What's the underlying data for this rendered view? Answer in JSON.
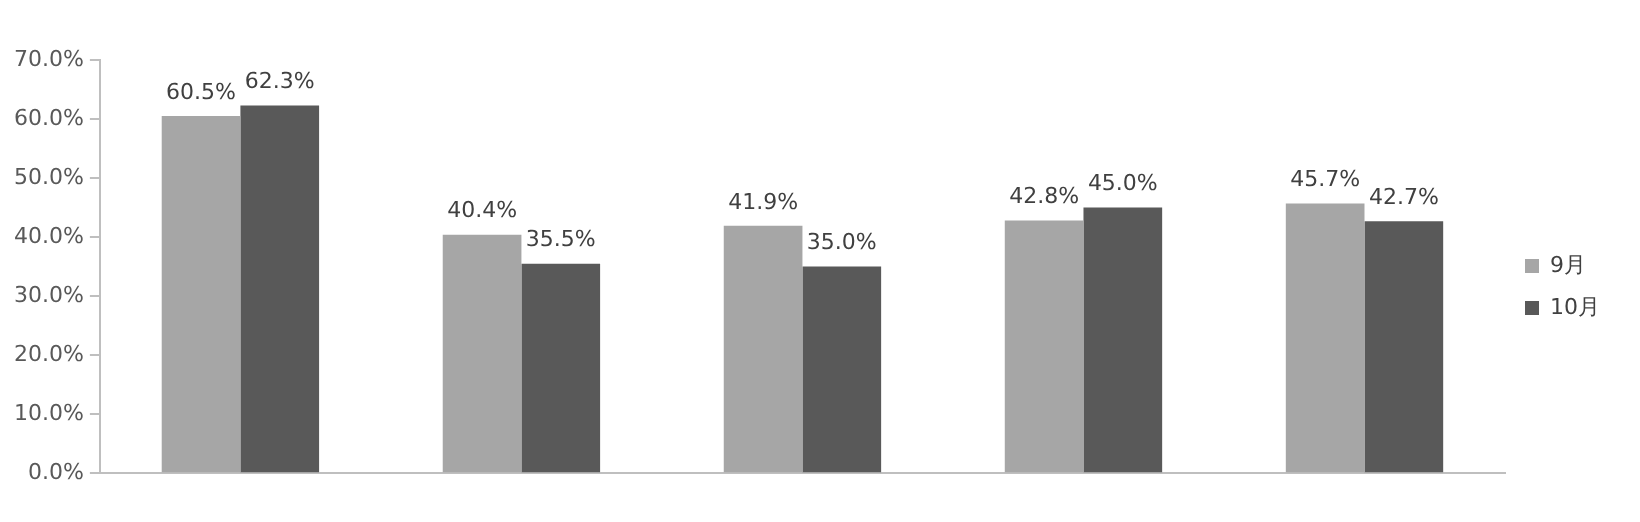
{
  "chart_data": {
    "type": "bar",
    "categories": [
      null,
      null,
      null,
      null,
      null
    ],
    "series": [
      {
        "name": "9月",
        "color": "#a6a6a6",
        "values": [
          60.5,
          40.4,
          41.9,
          42.8,
          45.7
        ],
        "value_labels": [
          "60.5%",
          "40.4%",
          "41.9%",
          "42.8%",
          "45.7%"
        ]
      },
      {
        "name": "10月",
        "color": "#595959",
        "values": [
          62.3,
          35.5,
          35.0,
          45.0,
          42.7
        ],
        "value_labels": [
          "62.3%",
          "35.5%",
          "35.0%",
          "45.0%",
          "42.7%"
        ]
      }
    ],
    "ylim": [
      0,
      70
    ],
    "yticks": [
      {
        "value": 0,
        "label": "0.0%"
      },
      {
        "value": 10,
        "label": "10.0%"
      },
      {
        "value": 20,
        "label": "20.0%"
      },
      {
        "value": 30,
        "label": "30.0%"
      },
      {
        "value": 40,
        "label": "40.0%"
      },
      {
        "value": 50,
        "label": "50.0%"
      },
      {
        "value": 60,
        "label": "60.0%"
      },
      {
        "value": 70,
        "label": "70.0%"
      }
    ],
    "grid": false,
    "legend": "right"
  }
}
